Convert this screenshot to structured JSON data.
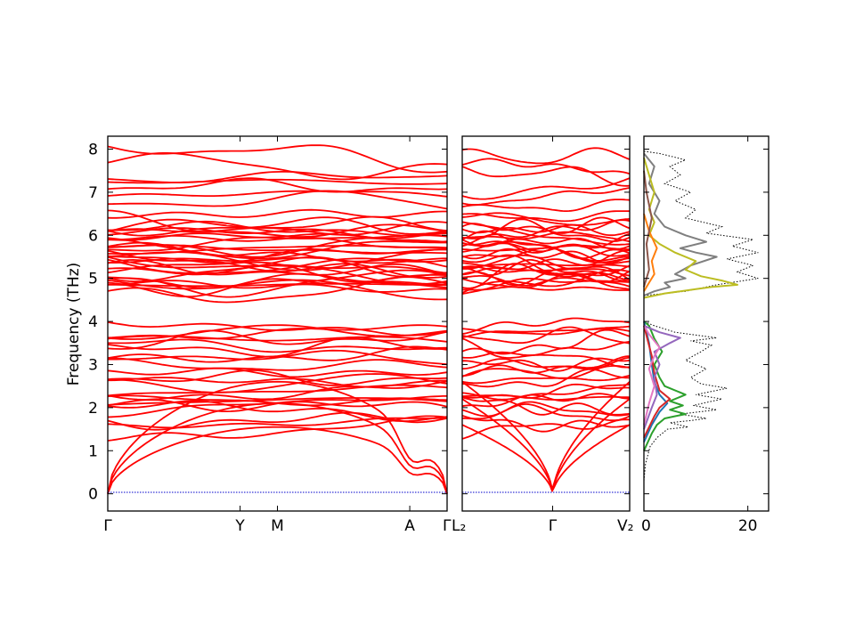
{
  "chart_data": [
    {
      "type": "line",
      "panel": "phonon-bands-main",
      "xlabel": "",
      "ylabel": "Frequency (THz)",
      "ylim": [
        -0.4,
        8.3
      ],
      "yticks": [
        0,
        1,
        2,
        3,
        4,
        5,
        6,
        7,
        8
      ],
      "xtick_labels": [
        "Γ",
        "Y",
        "M",
        "A",
        "Γ"
      ],
      "xtick_positions": [
        0,
        0.39,
        0.5,
        0.89,
        1.0
      ],
      "band_color": "#ff0000",
      "zero_line_color": "#0000cc",
      "acoustic_branches_max_thz": [
        1.55,
        2.1,
        2.6
      ],
      "band_group_low_thz": [
        0.7,
        4.05
      ],
      "gap_thz": [
        4.05,
        4.6
      ],
      "band_group_high_thz": [
        4.6,
        7.85
      ]
    },
    {
      "type": "line",
      "panel": "phonon-bands-second",
      "ylim": [
        -0.4,
        8.3
      ],
      "xtick_labels": [
        "L₂",
        "Γ",
        "V₂"
      ],
      "xtick_positions": [
        0,
        0.54,
        1.0
      ],
      "band_color": "#ff0000"
    },
    {
      "type": "line",
      "panel": "phonon-dos",
      "xlim": [
        0,
        24
      ],
      "ylim": [
        -0.4,
        8.3
      ],
      "xtick_labels": [
        "0",
        "20"
      ],
      "xticks": [
        0,
        20
      ],
      "series": [
        {
          "color": "#000000",
          "style": "dotted",
          "points": [
            [
              0,
              0.3
            ],
            [
              0.3,
              0.7
            ],
            [
              1.2,
              1.1
            ],
            [
              2.5,
              1.3
            ],
            [
              4.5,
              1.5
            ],
            [
              8.5,
              1.55
            ],
            [
              5,
              1.65
            ],
            [
              9,
              1.7
            ],
            [
              12,
              1.75
            ],
            [
              7,
              1.85
            ],
            [
              14,
              1.95
            ],
            [
              9.5,
              2.05
            ],
            [
              15,
              2.2
            ],
            [
              10,
              2.3
            ],
            [
              16,
              2.45
            ],
            [
              11,
              2.55
            ],
            [
              9,
              2.7
            ],
            [
              12,
              2.9
            ],
            [
              8,
              3.1
            ],
            [
              11,
              3.3
            ],
            [
              13,
              3.45
            ],
            [
              9,
              3.55
            ],
            [
              14,
              3.62
            ],
            [
              6,
              3.75
            ],
            [
              2,
              3.9
            ],
            [
              0,
              4.0
            ],
            [
              0,
              4.6
            ],
            [
              8,
              4.7
            ],
            [
              14,
              4.85
            ],
            [
              22,
              5.0
            ],
            [
              18,
              5.15
            ],
            [
              21,
              5.3
            ],
            [
              16,
              5.45
            ],
            [
              22,
              5.6
            ],
            [
              17,
              5.75
            ],
            [
              21,
              5.9
            ],
            [
              12,
              6.05
            ],
            [
              15,
              6.2
            ],
            [
              8,
              6.4
            ],
            [
              10,
              6.6
            ],
            [
              6,
              6.8
            ],
            [
              9,
              7.0
            ],
            [
              4,
              7.2
            ],
            [
              7,
              7.4
            ],
            [
              5,
              7.6
            ],
            [
              8,
              7.75
            ],
            [
              3,
              7.9
            ],
            [
              0,
              7.95
            ]
          ]
        },
        {
          "color": "#2ca02c",
          "style": "solid",
          "points": [
            [
              0,
              1.0
            ],
            [
              1.5,
              1.4
            ],
            [
              2.5,
              1.6
            ],
            [
              4,
              1.75
            ],
            [
              6,
              1.8
            ],
            [
              8,
              1.85
            ],
            [
              5,
              1.95
            ],
            [
              7.5,
              2.05
            ],
            [
              5,
              2.15
            ],
            [
              8,
              2.3
            ],
            [
              4,
              2.5
            ],
            [
              3,
              2.7
            ],
            [
              2,
              3.0
            ],
            [
              3.5,
              3.3
            ],
            [
              2,
              3.6
            ],
            [
              1,
              3.9
            ],
            [
              0,
              4.0
            ]
          ]
        },
        {
          "color": "#1f77b4",
          "style": "solid",
          "points": [
            [
              0,
              1.2
            ],
            [
              1.5,
              1.6
            ],
            [
              3,
              1.9
            ],
            [
              4.5,
              2.1
            ],
            [
              3,
              2.3
            ],
            [
              2,
              2.6
            ],
            [
              1.5,
              3.0
            ],
            [
              1,
              3.5
            ],
            [
              0,
              4.0
            ]
          ]
        },
        {
          "color": "#d62728",
          "style": "solid",
          "points": [
            [
              0,
              1.3
            ],
            [
              2,
              1.8
            ],
            [
              3,
              2.0
            ],
            [
              5,
              2.2
            ],
            [
              3,
              2.4
            ],
            [
              2,
              2.8
            ],
            [
              1.5,
              3.2
            ],
            [
              0,
              3.9
            ]
          ]
        },
        {
          "color": "#9467bd",
          "style": "solid",
          "points": [
            [
              0,
              1.5
            ],
            [
              1.5,
              2.0
            ],
            [
              2.5,
              2.3
            ],
            [
              2,
              2.7
            ],
            [
              3,
              3.0
            ],
            [
              2,
              3.3
            ],
            [
              5,
              3.5
            ],
            [
              7,
              3.62
            ],
            [
              3,
              3.75
            ],
            [
              0,
              3.9
            ]
          ]
        },
        {
          "color": "#e377c2",
          "style": "solid",
          "points": [
            [
              0,
              1.6
            ],
            [
              1,
              2.1
            ],
            [
              2,
              2.5
            ],
            [
              1,
              2.9
            ],
            [
              2,
              3.2
            ],
            [
              3,
              3.4
            ],
            [
              1,
              3.7
            ],
            [
              0,
              3.9
            ]
          ]
        },
        {
          "color": "#7f7f7f",
          "style": "solid",
          "points": [
            [
              0,
              4.6
            ],
            [
              2,
              4.7
            ],
            [
              5,
              4.8
            ],
            [
              4,
              4.9
            ],
            [
              8,
              5.0
            ],
            [
              6,
              5.1
            ],
            [
              9,
              5.3
            ],
            [
              14,
              5.5
            ],
            [
              10,
              5.6
            ],
            [
              7,
              5.7
            ],
            [
              12,
              5.85
            ],
            [
              8,
              6.0
            ],
            [
              4,
              6.2
            ],
            [
              2,
              6.5
            ],
            [
              3,
              6.8
            ],
            [
              1,
              7.2
            ],
            [
              2,
              7.6
            ],
            [
              0,
              7.9
            ]
          ]
        },
        {
          "color": "#bcbd22",
          "style": "solid",
          "points": [
            [
              0,
              4.55
            ],
            [
              4,
              4.65
            ],
            [
              10,
              4.75
            ],
            [
              13,
              4.8
            ],
            [
              18,
              4.85
            ],
            [
              15,
              4.95
            ],
            [
              11,
              5.05
            ],
            [
              8,
              5.2
            ],
            [
              10,
              5.4
            ],
            [
              6,
              5.6
            ],
            [
              3,
              5.8
            ],
            [
              1,
              6.0
            ],
            [
              2,
              6.3
            ],
            [
              1,
              6.6
            ],
            [
              2,
              7.0
            ],
            [
              1,
              7.4
            ],
            [
              0,
              7.8
            ]
          ]
        },
        {
          "color": "#ff7f0e",
          "style": "solid",
          "points": [
            [
              0,
              4.7
            ],
            [
              1,
              4.9
            ],
            [
              2,
              5.1
            ],
            [
              1.5,
              5.4
            ],
            [
              2.5,
              5.7
            ],
            [
              1,
              6.1
            ],
            [
              0,
              6.5
            ]
          ]
        },
        {
          "color": "#8c564b",
          "style": "solid",
          "points": [
            [
              0,
              4.8
            ],
            [
              1,
              5.2
            ],
            [
              0.5,
              5.8
            ],
            [
              1.5,
              6.4
            ],
            [
              0.5,
              7.0
            ],
            [
              0,
              7.5
            ]
          ]
        }
      ]
    }
  ]
}
